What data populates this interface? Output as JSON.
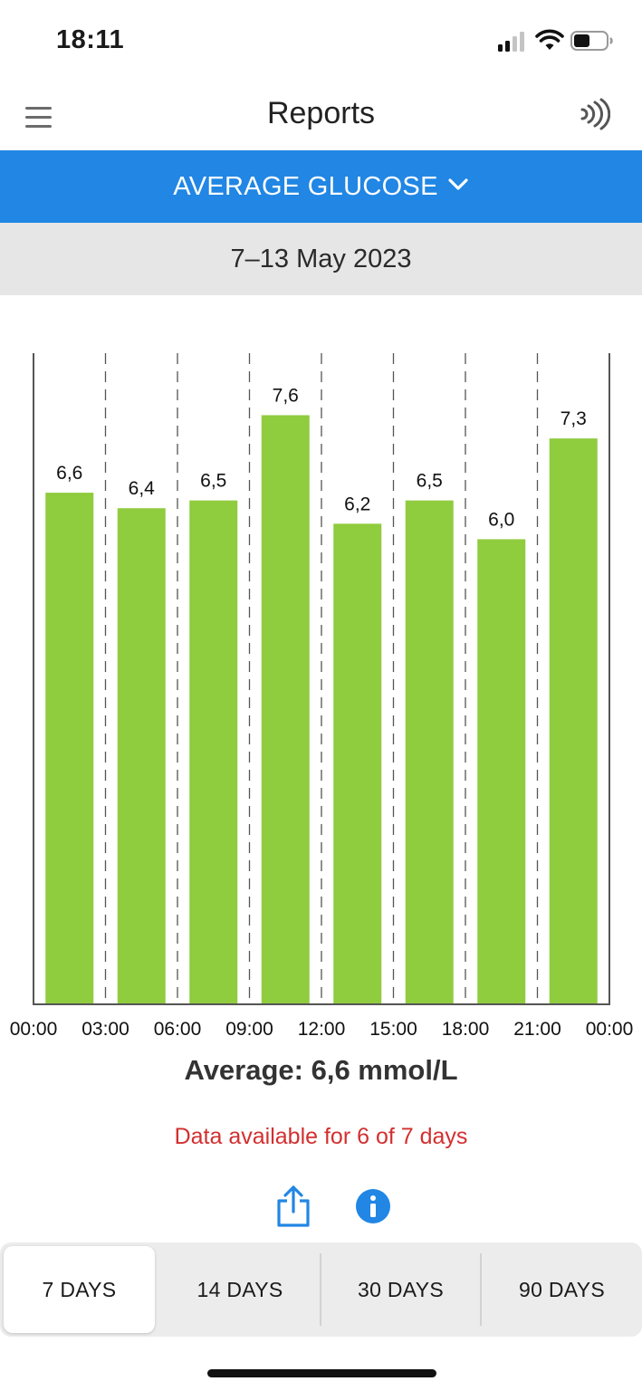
{
  "status_bar": {
    "time": "18:11",
    "icons": [
      "signal-icon",
      "wifi-icon",
      "battery-icon"
    ]
  },
  "nav": {
    "title": "Reports",
    "left_icon": "menu-icon",
    "right_icon": "nfc-scan-icon"
  },
  "report_selector": {
    "label": "AVERAGE GLUCOSE",
    "icon": "chevron-down-icon"
  },
  "date_range": "7–13 May 2023",
  "colors": {
    "accent": "#2186e4",
    "bar": "#8fcc3e",
    "warning": "#d32f2f",
    "date_bar_bg": "#e6e6e6"
  },
  "chart_data": {
    "type": "bar",
    "categories": [
      "00:00–03:00",
      "03:00–06:00",
      "06:00–09:00",
      "09:00–12:00",
      "12:00–15:00",
      "15:00–18:00",
      "18:00–21:00",
      "21:00–00:00"
    ],
    "values": [
      6.6,
      6.4,
      6.5,
      7.6,
      6.2,
      6.5,
      6.0,
      7.3
    ],
    "value_labels": [
      "6,6",
      "6,4",
      "6,5",
      "7,6",
      "6,2",
      "6,5",
      "6,0",
      "7,3"
    ],
    "x_ticks": [
      "00:00",
      "03:00",
      "06:00",
      "09:00",
      "12:00",
      "15:00",
      "18:00",
      "21:00",
      "00:00"
    ],
    "ylim": [
      0,
      8.4
    ],
    "grid": "vertical-dashed",
    "title": "",
    "xlabel": "",
    "ylabel": ""
  },
  "summary": {
    "average": "Average: 6,6 mmol/L",
    "availability": "Data available for 6 of 7 days"
  },
  "actions": {
    "share_icon": "share-icon",
    "info_icon": "info-icon"
  },
  "range_tabs": [
    {
      "label": "7 DAYS",
      "active": true
    },
    {
      "label": "14 DAYS",
      "active": false
    },
    {
      "label": "30 DAYS",
      "active": false
    },
    {
      "label": "90 DAYS",
      "active": false
    }
  ]
}
